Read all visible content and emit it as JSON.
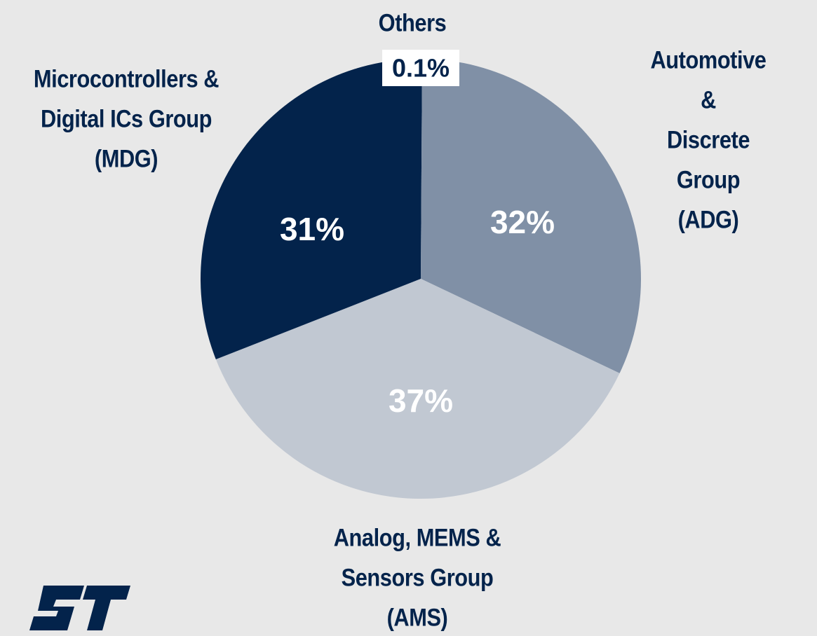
{
  "chart_data": {
    "type": "pie",
    "categories": [
      "Others",
      "Automotive &\nDiscrete Group\n(ADG)",
      "Analog, MEMS &\nSensors Group\n(AMS)",
      "Microcontrollers &\nDigital ICs Group\n(MDG)"
    ],
    "values": [
      0.1,
      32,
      37,
      31
    ],
    "value_labels": [
      "0.1%",
      "32%",
      "37%",
      "31%"
    ],
    "colors": [
      "#03234b",
      "#8090a6",
      "#c1c8d2",
      "#03234b"
    ]
  }
}
